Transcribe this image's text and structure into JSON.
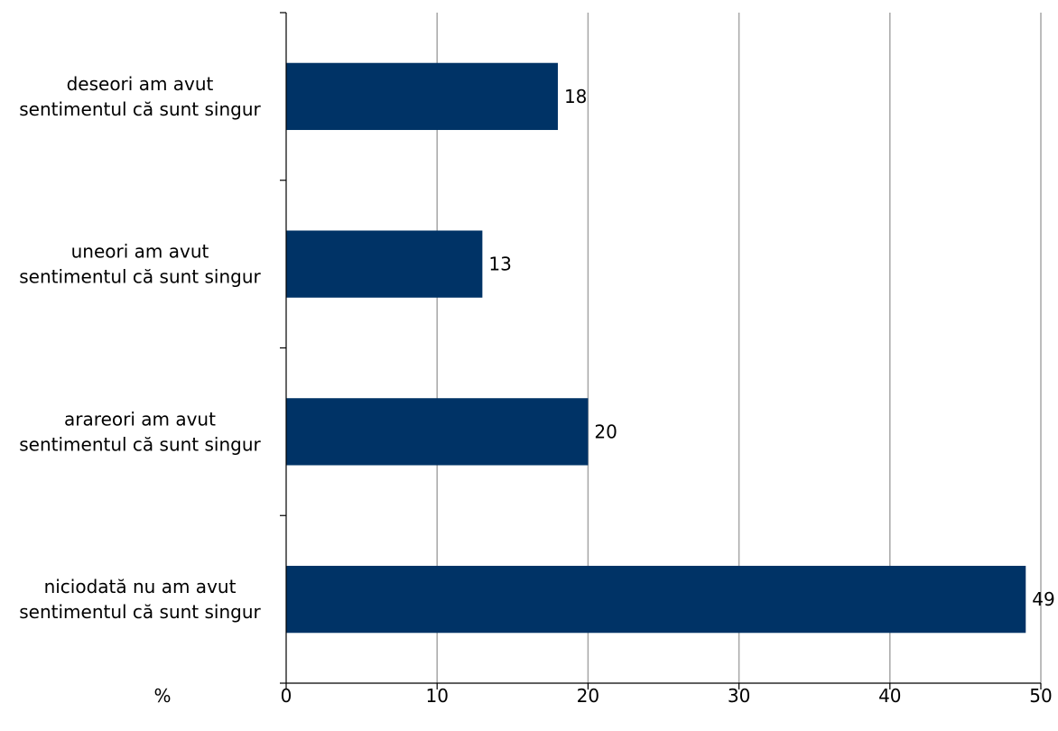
{
  "chart_data": {
    "type": "bar",
    "orientation": "horizontal",
    "categories": [
      [
        "deseori am avut",
        "sentimentul că sunt singur"
      ],
      [
        "uneori am avut",
        "sentimentul că sunt singur"
      ],
      [
        "arareori am avut",
        "sentimentul că sunt singur"
      ],
      [
        "niciodată nu am avut",
        "sentimentul că sunt singur"
      ]
    ],
    "values": [
      18,
      13,
      20,
      49
    ],
    "data_labels": [
      "18",
      "13",
      "20",
      "49"
    ],
    "xlim": [
      0,
      50
    ],
    "x_ticks": [
      0,
      10,
      20,
      30,
      40,
      50
    ],
    "x_tick_labels": [
      "0",
      "10",
      "20",
      "30",
      "40",
      "50"
    ],
    "xlabel": "%",
    "grid": "vertical",
    "bar_color": "#003366",
    "grid_color": "#a6a6a6",
    "axis_color": "#000000"
  }
}
